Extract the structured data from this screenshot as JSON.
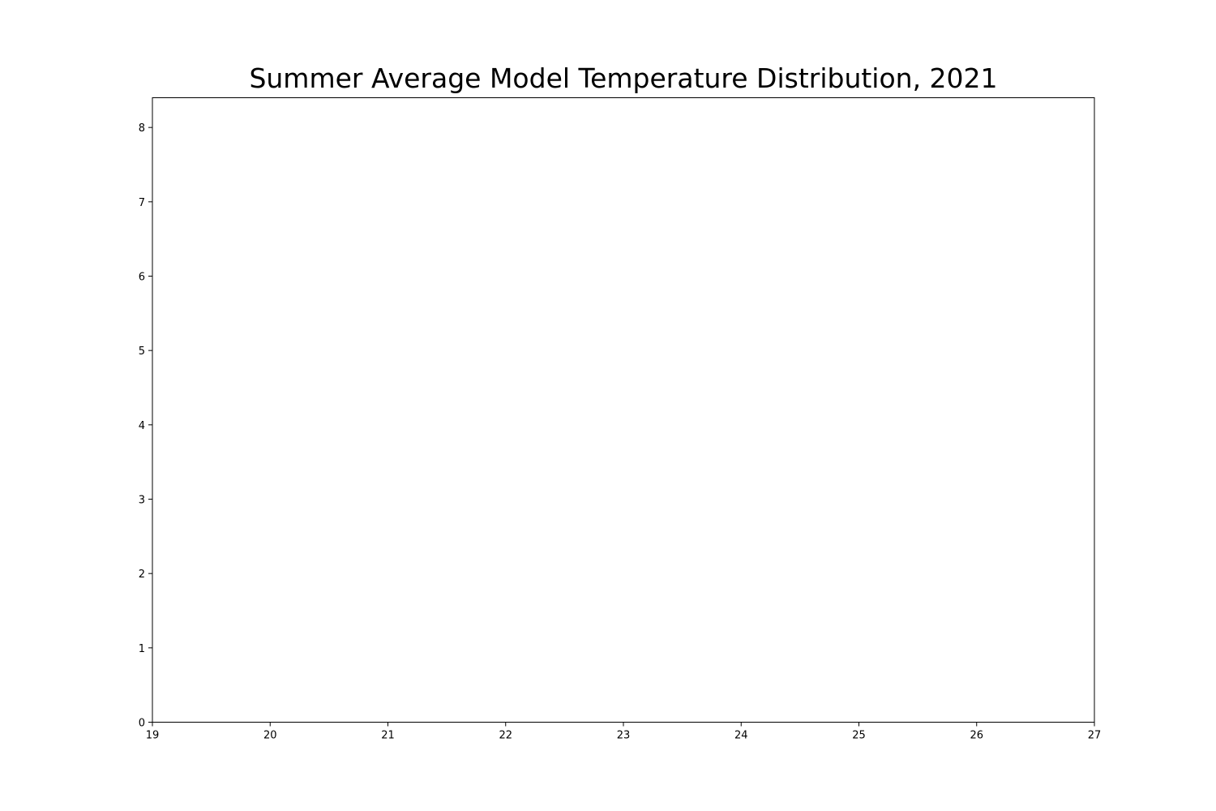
{
  "chart_data": {
    "type": "bar",
    "title": "Summer Average Model Temperature Distribution, 2021",
    "xlabel": "",
    "ylabel": "",
    "xlim": [
      19,
      27
    ],
    "ylim": [
      0,
      8.4
    ],
    "x_ticks": [
      "19",
      "20",
      "21",
      "22",
      "23",
      "24",
      "25",
      "26",
      "27"
    ],
    "y_ticks": [
      "0",
      "1",
      "2",
      "3",
      "4",
      "5",
      "6",
      "7",
      "8"
    ],
    "series": [],
    "grid": false,
    "legend": "none"
  },
  "colors": {
    "axis": "#000000",
    "background": "#ffffff"
  }
}
